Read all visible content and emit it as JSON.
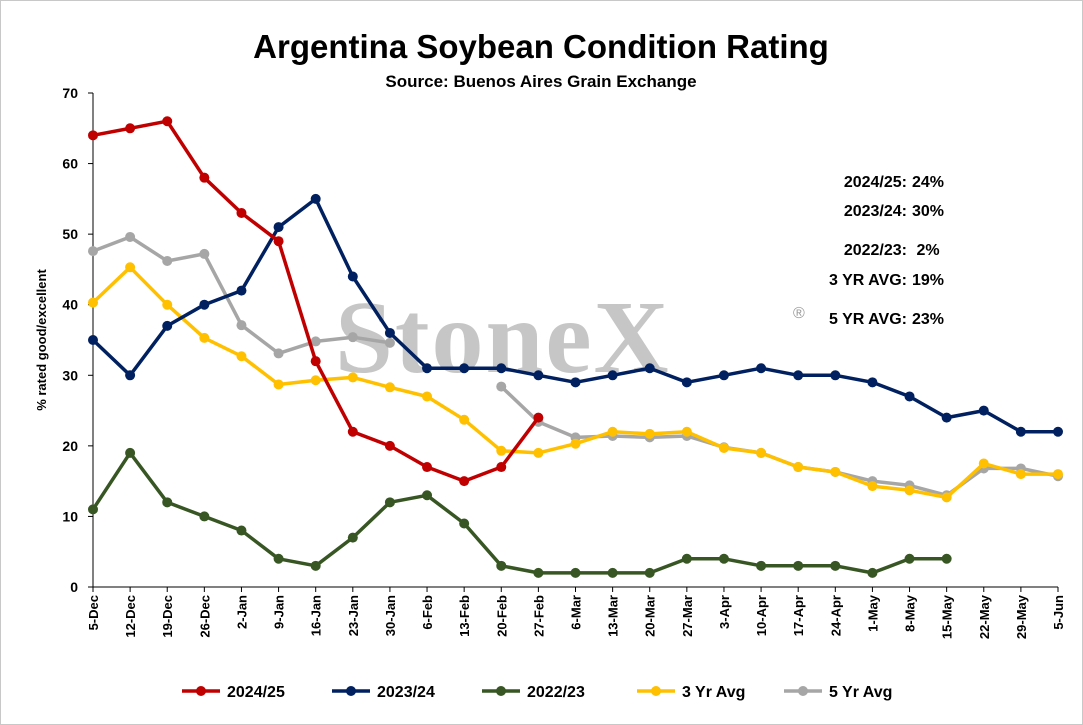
{
  "watermark": "StoneX",
  "chart_data": {
    "type": "line",
    "title": "Argentina Soybean Condition Rating",
    "subtitle": "Source: Buenos Aires Grain Exchange",
    "ylabel": "% rated good/excellent",
    "xlabel": "",
    "ylim": [
      0,
      70
    ],
    "yticks": [
      0,
      10,
      20,
      30,
      40,
      50,
      60,
      70
    ],
    "grid": false,
    "legend_position": "bottom",
    "categories": [
      "5-Dec",
      "12-Dec",
      "19-Dec",
      "26-Dec",
      "2-Jan",
      "9-Jan",
      "16-Jan",
      "23-Jan",
      "30-Jan",
      "6-Feb",
      "13-Feb",
      "20-Feb",
      "27-Feb",
      "6-Mar",
      "13-Mar",
      "20-Mar",
      "27-Mar",
      "3-Apr",
      "10-Apr",
      "17-Apr",
      "24-Apr",
      "1-May",
      "8-May",
      "15-May",
      "22-May",
      "29-May",
      "5-Jun"
    ],
    "series": [
      {
        "name": "2024/25",
        "color": "#c00000",
        "values": [
          64,
          65,
          66,
          58,
          53,
          49,
          32,
          22,
          20,
          17,
          15,
          17,
          24,
          null,
          null,
          null,
          null,
          null,
          null,
          null,
          null,
          null,
          null,
          null,
          null,
          null,
          null
        ]
      },
      {
        "name": "2023/24",
        "color": "#002060",
        "values": [
          35,
          30,
          37,
          40,
          42,
          51,
          55,
          44,
          36,
          31,
          31,
          31,
          30,
          29,
          30,
          31,
          29,
          30,
          31,
          30,
          30,
          29,
          27,
          24,
          25,
          22,
          22
        ]
      },
      {
        "name": "2022/23",
        "color": "#375623",
        "values": [
          11,
          19,
          12,
          10,
          8,
          4,
          3,
          7,
          12,
          13,
          9,
          3,
          2,
          2,
          2,
          2,
          4,
          4,
          3,
          3,
          3,
          2,
          4,
          4,
          null,
          null,
          null
        ]
      },
      {
        "name": "3 Yr Avg",
        "color": "#ffc000",
        "values": [
          40.3,
          45.3,
          40,
          35.3,
          32.7,
          28.7,
          29.3,
          29.7,
          28.3,
          27,
          23.7,
          19.3,
          19,
          20.3,
          22,
          21.7,
          22,
          19.7,
          19,
          17,
          16.3,
          14.3,
          13.7,
          12.7,
          17.5,
          16,
          16
        ]
      },
      {
        "name": "5 Yr Avg",
        "color": "#a6a6a6",
        "values": [
          47.6,
          49.6,
          46.2,
          47.2,
          37.1,
          33.1,
          34.8,
          35.4,
          34.6,
          null,
          null,
          28.4,
          23.4,
          21.2,
          21.4,
          21.2,
          21.4,
          19.8,
          19,
          17,
          16.3,
          15,
          14.4,
          13,
          16.8,
          16.8,
          15.7
        ]
      }
    ],
    "annotations": [
      {
        "label": "2024/25:",
        "value": "24%"
      },
      {
        "label": "2023/24:",
        "value": "30%"
      },
      {
        "label": "2022/23:",
        "value": " 2%"
      },
      {
        "label": "3 YR AVG:",
        "value": "19%"
      },
      {
        "label": "5 YR AVG:",
        "value": "23%"
      }
    ]
  }
}
